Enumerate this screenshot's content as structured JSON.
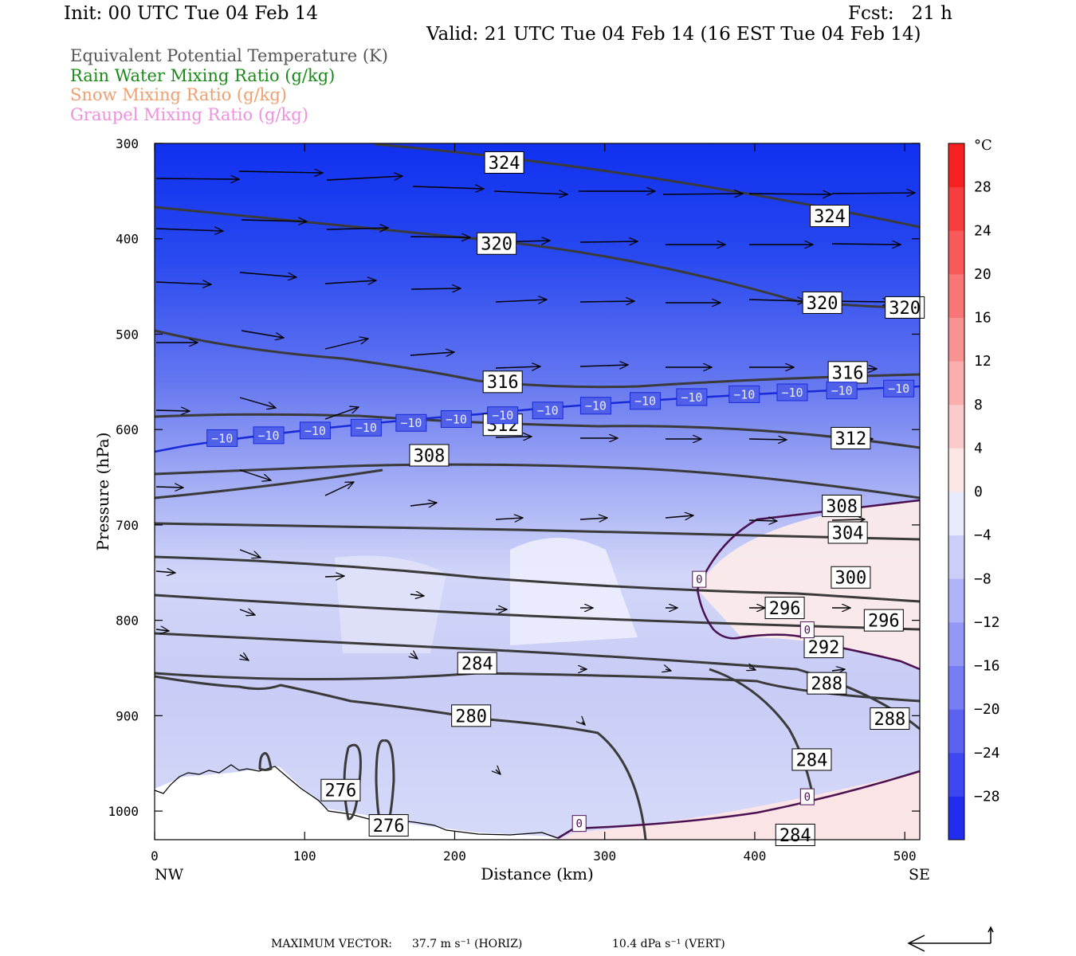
{
  "header": {
    "init": "Init: 00 UTC Tue 04 Feb 14",
    "fcst": "Fcst:   21 h",
    "valid": "Valid: 21 UTC Tue 04 Feb 14 (16 EST Tue 04 Feb 14)"
  },
  "legend": [
    {
      "text": "Equivalent Potential Temperature (K)",
      "color": "#555555"
    },
    {
      "text": "Rain Water Mixing Ratio (g/kg)",
      "color": "#1a8a1a"
    },
    {
      "text": "Snow Mixing Ratio (g/kg)",
      "color": "#f0a070"
    },
    {
      "text": "Graupel Mixing Ratio (g/kg)",
      "color": "#f090e0"
    }
  ],
  "chart_data": {
    "type": "contour-cross-section",
    "xlabel": "Distance (km)",
    "ylabel": "Pressure (hPa)",
    "x_ticks": [
      0,
      100,
      200,
      300,
      400,
      500
    ],
    "y_ticks": [
      300,
      400,
      500,
      600,
      700,
      800,
      900,
      1000
    ],
    "xlim": [
      0,
      510
    ],
    "ylim": [
      300,
      1030
    ],
    "x_end_labels": {
      "left": "NW",
      "right": "SE"
    },
    "colorbar": {
      "unit": "°C",
      "ticks": [
        28,
        24,
        20,
        16,
        12,
        8,
        4,
        0,
        -4,
        -8,
        -12,
        -16,
        -20,
        -24,
        -28
      ],
      "tick_labels": [
        "28",
        "24",
        "20",
        "16",
        "12",
        "8",
        "4",
        "0",
        "−4",
        "−8",
        "−12",
        "−16",
        "−20",
        "−24",
        "−28"
      ],
      "range": [
        -32,
        32
      ]
    },
    "theta_e_labels": [
      {
        "text": "324",
        "x": 233,
        "p": 320
      },
      {
        "text": "324",
        "x": 450,
        "p": 376
      },
      {
        "text": "320",
        "x": 228,
        "p": 405
      },
      {
        "text": "320",
        "x": 445,
        "p": 467
      },
      {
        "text": "320",
        "x": 500,
        "p": 472
      },
      {
        "text": "316",
        "x": 232,
        "p": 550
      },
      {
        "text": "316",
        "x": 462,
        "p": 540
      },
      {
        "text": "312",
        "x": 232,
        "p": 595
      },
      {
        "text": "312",
        "x": 464,
        "p": 609
      },
      {
        "text": "308",
        "x": 183,
        "p": 627
      },
      {
        "text": "308",
        "x": 458,
        "p": 680
      },
      {
        "text": "304",
        "x": 462,
        "p": 708
      },
      {
        "text": "300",
        "x": 464,
        "p": 755
      },
      {
        "text": "296",
        "x": 420,
        "p": 787
      },
      {
        "text": "296",
        "x": 486,
        "p": 800
      },
      {
        "text": "292",
        "x": 446,
        "p": 828
      },
      {
        "text": "288",
        "x": 448,
        "p": 866
      },
      {
        "text": "288",
        "x": 490,
        "p": 903
      },
      {
        "text": "284",
        "x": 215,
        "p": 845
      },
      {
        "text": "284",
        "x": 438,
        "p": 946
      },
      {
        "text": "284",
        "x": 427,
        "p": 1025
      },
      {
        "text": "280",
        "x": 211,
        "p": 900
      },
      {
        "text": "276",
        "x": 124,
        "p": 978
      },
      {
        "text": "276",
        "x": 156,
        "p": 1015
      }
    ],
    "temp_isotherm_labels": [
      {
        "text": "−10",
        "x": 45,
        "p": 609
      },
      {
        "text": "−10",
        "x": 76,
        "p": 606
      },
      {
        "text": "−10",
        "x": 107,
        "p": 601
      },
      {
        "text": "−10",
        "x": 141,
        "p": 598
      },
      {
        "text": "−10",
        "x": 171,
        "p": 593
      },
      {
        "text": "−10",
        "x": 201,
        "p": 589
      },
      {
        "text": "−10",
        "x": 232,
        "p": 585
      },
      {
        "text": "−10",
        "x": 262,
        "p": 580
      },
      {
        "text": "−10",
        "x": 294,
        "p": 575
      },
      {
        "text": "−10",
        "x": 327,
        "p": 570
      },
      {
        "text": "−10",
        "x": 358,
        "p": 566
      },
      {
        "text": "−10",
        "x": 393,
        "p": 563
      },
      {
        "text": "−10",
        "x": 425,
        "p": 561
      },
      {
        "text": "−10",
        "x": 458,
        "p": 559
      },
      {
        "text": "−10",
        "x": 496,
        "p": 557
      }
    ],
    "zero_isotherm_labels": [
      {
        "text": "0",
        "x": 363,
        "p": 757
      },
      {
        "text": "0",
        "x": 435,
        "p": 810
      },
      {
        "text": "0",
        "x": 435,
        "p": 985
      },
      {
        "text": "0",
        "x": 283,
        "p": 1013
      }
    ]
  },
  "footer": {
    "max_vector": "MAXIMUM VECTOR:",
    "horiz": "37.7 m s⁻¹ (HORIZ)",
    "vert": "10.4 dPa s⁻¹ (VERT)"
  }
}
